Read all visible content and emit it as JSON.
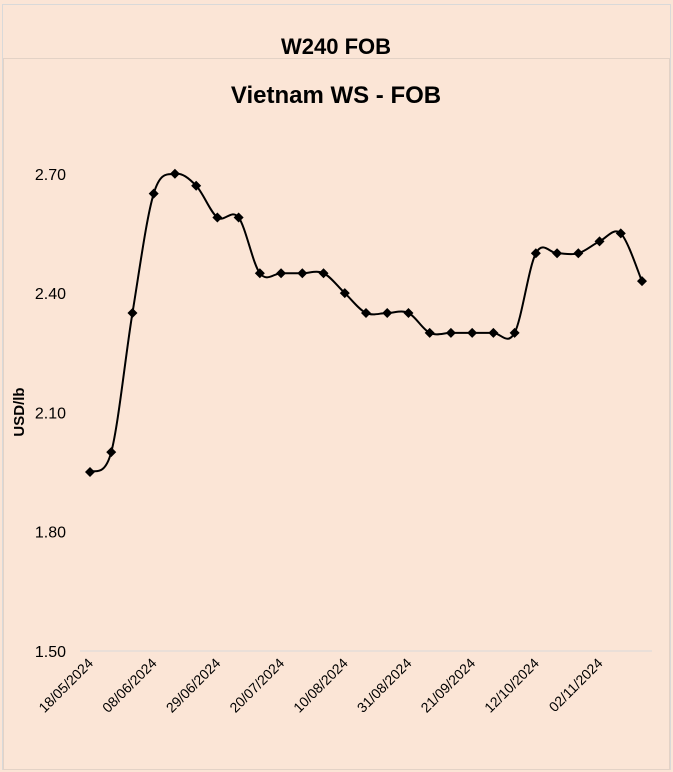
{
  "chart_data": {
    "type": "line",
    "header_title": "W240 FOB",
    "title": "Vietnam WS - FOB",
    "y_label": "USD/lb",
    "categories": [
      "18/05/2024",
      null,
      null,
      "08/06/2024",
      null,
      null,
      "29/06/2024",
      null,
      null,
      "20/07/2024",
      null,
      null,
      "10/08/2024",
      null,
      null,
      "31/08/2024",
      null,
      null,
      "21/09/2024",
      null,
      null,
      "12/10/2024",
      null,
      null,
      "02/11/2024",
      null,
      null
    ],
    "series": [
      {
        "name": "Vietnam WS - FOB",
        "color": "#000000",
        "values": [
          1.95,
          2.0,
          2.35,
          2.65,
          2.7,
          2.67,
          2.59,
          2.59,
          2.45,
          2.45,
          2.45,
          2.45,
          2.4,
          2.35,
          2.35,
          2.35,
          2.3,
          2.3,
          2.3,
          2.3,
          2.3,
          2.5,
          2.5,
          2.5,
          2.53,
          2.55,
          2.43
        ]
      }
    ],
    "ylim": [
      1.5,
      2.8
    ],
    "yticks": [
      {
        "value": 1.5,
        "label": "1.50"
      },
      {
        "value": 1.8,
        "label": "1.80"
      },
      {
        "value": 2.1,
        "label": "2.10"
      },
      {
        "value": 2.4,
        "label": "2.40"
      },
      {
        "value": 2.7,
        "label": "2.70"
      }
    ],
    "smooth": true,
    "marker": "diamond"
  }
}
